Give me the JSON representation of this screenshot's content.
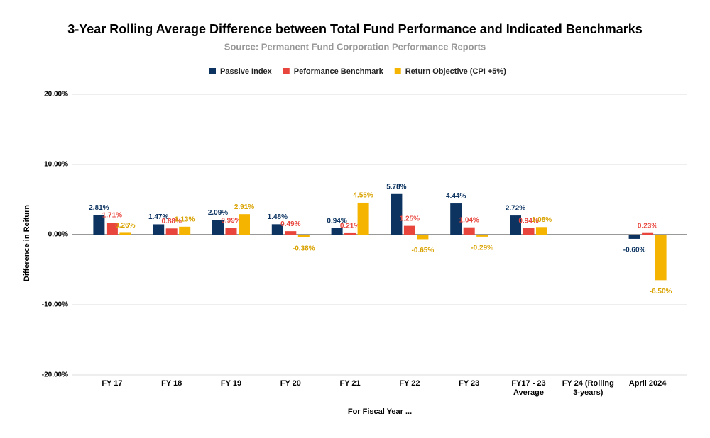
{
  "chart_data": {
    "type": "bar",
    "title": "3-Year Rolling Average Difference between Total Fund Performance and Indicated Benchmarks",
    "subtitle": "Source: Permanent Fund Corporation Performance Reports",
    "x_label": "For Fiscal Year ...",
    "y_label": "Difference in Reiturn",
    "categories": [
      "FY 17",
      "FY 18",
      "FY 19",
      "FY 20",
      "FY 21",
      "FY 22",
      "FY 23",
      "FY17 - 23\nAverage",
      "FY 24 (Rolling\n3-years)",
      "April 2024"
    ],
    "series": [
      {
        "name": "Passive Index",
        "color": "#0d3461",
        "values": [
          2.81,
          1.47,
          2.09,
          1.48,
          0.94,
          5.78,
          4.44,
          2.72,
          null,
          -0.6
        ],
        "value_labels": [
          "2.81%",
          "1.47%",
          "2.09%",
          "1.48%",
          "0.94%",
          "5.78%",
          "4.44%",
          "2.72%",
          null,
          "-0.60%"
        ]
      },
      {
        "name": "Peformance Benchmark",
        "color": "#e8453c",
        "values": [
          1.71,
          0.88,
          0.99,
          0.49,
          0.21,
          1.25,
          1.04,
          0.94,
          null,
          0.23
        ],
        "value_labels": [
          "1.71%",
          "0.88%",
          "0.99%",
          "0.49%",
          "0.21%",
          "1.25%",
          "1.04%",
          "0.94%",
          null,
          "0.23%"
        ]
      },
      {
        "name": "Return Objective (CPI +5%)",
        "color": "#f4b400",
        "values": [
          0.26,
          1.13,
          2.91,
          -0.38,
          4.55,
          -0.65,
          -0.29,
          1.08,
          null,
          -6.5
        ],
        "value_labels": [
          "0.26%",
          "1.13%",
          "2.91%",
          "-0.38%",
          "4.55%",
          "-0.65%",
          "-0.29%",
          "1.08%",
          null,
          "-6.50%"
        ]
      }
    ],
    "ylim": [
      -20,
      20
    ],
    "yticks": [
      {
        "value": -20,
        "label": "-20.00%"
      },
      {
        "value": -10,
        "label": "-10.00%"
      },
      {
        "value": 0,
        "label": "0.00%"
      },
      {
        "value": 10,
        "label": "10.00%"
      },
      {
        "value": 20,
        "label": "20.00%"
      }
    ],
    "grid": true,
    "legend": "top"
  }
}
